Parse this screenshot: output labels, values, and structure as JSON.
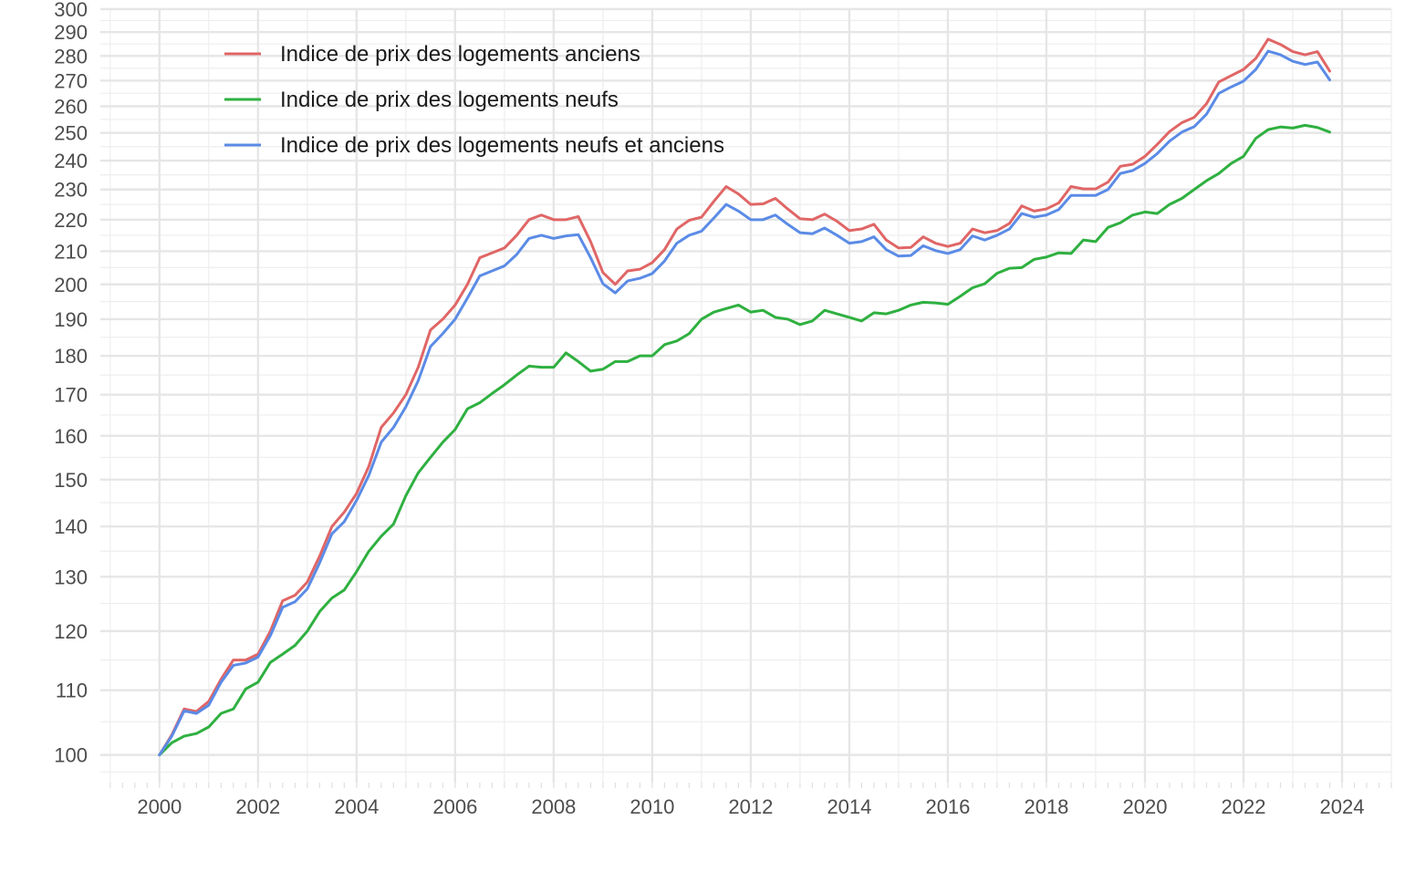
{
  "chart_data": {
    "type": "line",
    "title": "",
    "xlabel": "",
    "ylabel": "",
    "y_scale": "log",
    "ylim": [
      96,
      300
    ],
    "xlim": [
      1998.8,
      2025.0
    ],
    "grid": true,
    "legend_position": "top-left",
    "x_ticks": [
      2000,
      2002,
      2004,
      2006,
      2008,
      2010,
      2012,
      2014,
      2016,
      2018,
      2020,
      2022,
      2024
    ],
    "y_ticks": [
      100,
      110,
      120,
      130,
      140,
      150,
      160,
      170,
      180,
      190,
      200,
      210,
      220,
      230,
      240,
      250,
      260,
      270,
      280,
      290,
      300
    ],
    "series": [
      {
        "name": "Indice de prix des logements anciens",
        "color": "#e06666",
        "x": [
          2000.0,
          2000.25,
          2000.5,
          2000.75,
          2001.0,
          2001.25,
          2001.5,
          2001.75,
          2002.0,
          2002.25,
          2002.5,
          2002.75,
          2003.0,
          2003.25,
          2003.5,
          2003.75,
          2004.0,
          2004.25,
          2004.5,
          2004.75,
          2005.0,
          2005.25,
          2005.5,
          2005.75,
          2006.0,
          2006.25,
          2006.5,
          2006.75,
          2007.0,
          2007.25,
          2007.5,
          2007.75,
          2008.0,
          2008.25,
          2008.5,
          2008.75,
          2009.0,
          2009.25,
          2009.5,
          2009.75,
          2010.0,
          2010.25,
          2010.5,
          2010.75,
          2011.0,
          2011.25,
          2011.5,
          2011.75,
          2012.0,
          2012.25,
          2012.5,
          2012.75,
          2013.0,
          2013.25,
          2013.5,
          2013.75,
          2014.0,
          2014.25,
          2014.5,
          2014.75,
          2015.0,
          2015.25,
          2015.5,
          2015.75,
          2016.0,
          2016.25,
          2016.5,
          2016.75,
          2017.0,
          2017.25,
          2017.5,
          2017.75,
          2018.0,
          2018.25,
          2018.5,
          2018.75,
          2019.0,
          2019.25,
          2019.5,
          2019.75,
          2020.0,
          2020.25,
          2020.5,
          2020.75,
          2021.0,
          2021.25,
          2021.5,
          2021.75,
          2022.0,
          2022.25,
          2022.5,
          2022.75,
          2023.0,
          2023.25,
          2023.5,
          2023.75
        ],
        "values": [
          100.0,
          103.0,
          107.0,
          106.6,
          108.2,
          111.8,
          115.0,
          115.0,
          116.0,
          120.0,
          125.5,
          126.5,
          129.0,
          134.0,
          140.0,
          143.0,
          147.0,
          153.0,
          162.0,
          165.5,
          170.0,
          177.0,
          187.0,
          190.0,
          194.0,
          200.0,
          208.0,
          209.5,
          211.0,
          215.0,
          220.0,
          221.5,
          220.0,
          220.0,
          221.0,
          213.0,
          203.5,
          200.0,
          204.0,
          204.5,
          206.5,
          210.5,
          217.0,
          219.8,
          220.8,
          226.0,
          231.0,
          228.5,
          225.0,
          225.2,
          227.0,
          223.5,
          220.3,
          220.0,
          221.8,
          219.5,
          216.5,
          217.0,
          218.5,
          213.5,
          211.0,
          211.2,
          214.5,
          212.5,
          211.5,
          212.5,
          217.0,
          215.8,
          216.5,
          218.8,
          224.5,
          222.8,
          223.5,
          225.5,
          231.0,
          230.2,
          230.2,
          232.5,
          238.0,
          238.7,
          241.5,
          245.8,
          250.5,
          253.8,
          255.8,
          261.0,
          269.5,
          272.0,
          274.5,
          279.0,
          287.0,
          284.8,
          281.8,
          280.5,
          281.8,
          273.8
        ]
      },
      {
        "name": "Indice de prix des logements neufs",
        "color": "#2fb040",
        "x": [
          2000.0,
          2000.25,
          2000.5,
          2000.75,
          2001.0,
          2001.25,
          2001.5,
          2001.75,
          2002.0,
          2002.25,
          2002.5,
          2002.75,
          2003.0,
          2003.25,
          2003.5,
          2003.75,
          2004.0,
          2004.25,
          2004.5,
          2004.75,
          2005.0,
          2005.25,
          2005.5,
          2005.75,
          2006.0,
          2006.25,
          2006.5,
          2006.75,
          2007.0,
          2007.25,
          2007.5,
          2007.75,
          2008.0,
          2008.25,
          2008.5,
          2008.75,
          2009.0,
          2009.25,
          2009.5,
          2009.75,
          2010.0,
          2010.25,
          2010.5,
          2010.75,
          2011.0,
          2011.25,
          2011.5,
          2011.75,
          2012.0,
          2012.25,
          2012.5,
          2012.75,
          2013.0,
          2013.25,
          2013.5,
          2013.75,
          2014.0,
          2014.25,
          2014.5,
          2014.75,
          2015.0,
          2015.25,
          2015.5,
          2015.75,
          2016.0,
          2016.25,
          2016.5,
          2016.75,
          2017.0,
          2017.25,
          2017.5,
          2017.75,
          2018.0,
          2018.25,
          2018.5,
          2018.75,
          2019.0,
          2019.25,
          2019.5,
          2019.75,
          2020.0,
          2020.25,
          2020.5,
          2020.75,
          2021.0,
          2021.25,
          2021.5,
          2021.75,
          2022.0,
          2022.25,
          2022.5,
          2022.75,
          2023.0,
          2023.25,
          2023.5,
          2023.75
        ],
        "values": [
          100.0,
          101.8,
          102.8,
          103.2,
          104.2,
          106.3,
          107.0,
          110.2,
          111.3,
          114.6,
          116.0,
          117.5,
          120.0,
          123.5,
          126.0,
          127.5,
          131.0,
          135.0,
          138.0,
          140.5,
          146.5,
          151.5,
          155.0,
          158.5,
          161.5,
          166.5,
          168.0,
          170.3,
          172.5,
          175.0,
          177.3,
          177.0,
          177.0,
          180.8,
          178.5,
          176.0,
          176.5,
          178.5,
          178.5,
          180.0,
          180.0,
          183.0,
          184.0,
          186.0,
          190.0,
          192.0,
          193.0,
          194.0,
          192.0,
          192.5,
          190.5,
          190.0,
          188.5,
          189.5,
          192.5,
          191.5,
          190.5,
          189.5,
          191.8,
          191.5,
          192.5,
          194.0,
          194.8,
          194.6,
          194.2,
          196.5,
          199.0,
          200.2,
          203.3,
          204.8,
          205.0,
          207.5,
          208.2,
          209.5,
          209.3,
          213.5,
          213.0,
          217.5,
          219.0,
          221.5,
          222.5,
          222.0,
          225.0,
          227.0,
          230.0,
          233.0,
          235.5,
          239.0,
          241.5,
          248.0,
          251.2,
          252.2,
          251.8,
          252.8,
          252.0,
          250.3
        ]
      },
      {
        "name": "Indice de prix des logements neufs et anciens",
        "color": "#5b8be6",
        "x": [
          2000.0,
          2000.25,
          2000.5,
          2000.75,
          2001.0,
          2001.25,
          2001.5,
          2001.75,
          2002.0,
          2002.25,
          2002.5,
          2002.75,
          2003.0,
          2003.25,
          2003.5,
          2003.75,
          2004.0,
          2004.25,
          2004.5,
          2004.75,
          2005.0,
          2005.25,
          2005.5,
          2005.75,
          2006.0,
          2006.25,
          2006.5,
          2006.75,
          2007.0,
          2007.25,
          2007.5,
          2007.75,
          2008.0,
          2008.25,
          2008.5,
          2008.75,
          2009.0,
          2009.25,
          2009.5,
          2009.75,
          2010.0,
          2010.25,
          2010.5,
          2010.75,
          2011.0,
          2011.25,
          2011.5,
          2011.75,
          2012.0,
          2012.25,
          2012.5,
          2012.75,
          2013.0,
          2013.25,
          2013.5,
          2013.75,
          2014.0,
          2014.25,
          2014.5,
          2014.75,
          2015.0,
          2015.25,
          2015.5,
          2015.75,
          2016.0,
          2016.25,
          2016.5,
          2016.75,
          2017.0,
          2017.25,
          2017.5,
          2017.75,
          2018.0,
          2018.25,
          2018.5,
          2018.75,
          2019.0,
          2019.25,
          2019.5,
          2019.75,
          2020.0,
          2020.25,
          2020.5,
          2020.75,
          2021.0,
          2021.25,
          2021.5,
          2021.75,
          2022.0,
          2022.25,
          2022.5,
          2022.75,
          2023.0,
          2023.25,
          2023.5,
          2023.75
        ],
        "values": [
          100.0,
          102.8,
          106.7,
          106.3,
          107.6,
          111.3,
          114.1,
          114.5,
          115.5,
          119.2,
          124.3,
          125.3,
          127.7,
          132.7,
          138.5,
          141.0,
          145.5,
          151.0,
          158.5,
          162.0,
          167.0,
          173.5,
          182.5,
          186.0,
          190.0,
          196.0,
          202.5,
          204.0,
          205.5,
          209.0,
          214.0,
          215.0,
          214.0,
          214.8,
          215.2,
          208.0,
          200.2,
          197.5,
          201.0,
          201.8,
          203.2,
          207.0,
          212.5,
          215.0,
          216.3,
          220.5,
          225.0,
          222.8,
          220.0,
          220.0,
          221.5,
          218.5,
          215.8,
          215.5,
          217.3,
          215.0,
          212.5,
          213.0,
          214.5,
          210.5,
          208.5,
          208.7,
          211.7,
          210.2,
          209.3,
          210.5,
          214.8,
          213.5,
          215.0,
          217.0,
          222.0,
          220.8,
          221.5,
          223.3,
          228.0,
          228.0,
          228.0,
          230.0,
          235.5,
          236.5,
          239.0,
          242.5,
          247.0,
          250.3,
          252.3,
          257.0,
          265.0,
          267.5,
          269.8,
          274.5,
          282.0,
          280.5,
          277.8,
          276.5,
          277.5,
          270.3
        ]
      }
    ]
  }
}
